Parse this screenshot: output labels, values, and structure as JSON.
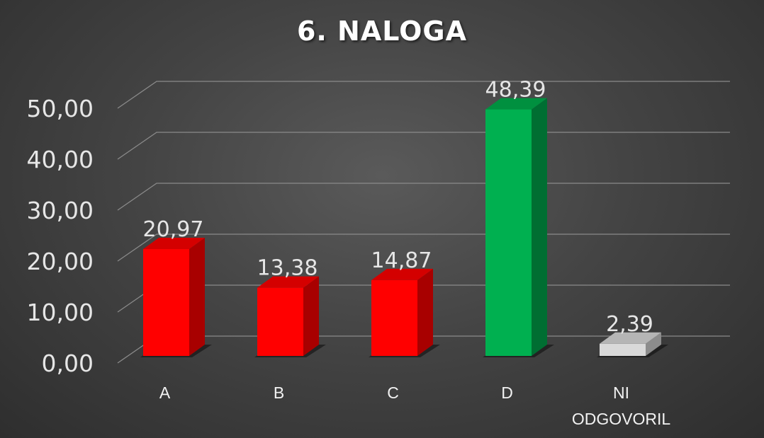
{
  "chart_data": {
    "type": "bar",
    "title": "6. NALOGA",
    "categories": [
      "A",
      "B",
      "C",
      "D",
      "NI ODGOVORIL"
    ],
    "category_lines": [
      [
        "A"
      ],
      [
        "B"
      ],
      [
        "C"
      ],
      [
        "D"
      ],
      [
        "NI",
        "ODGOVORIL"
      ]
    ],
    "values": [
      20.97,
      13.38,
      14.87,
      48.39,
      2.39
    ],
    "data_labels": [
      "20,97",
      "13,38",
      "14,87",
      "48,39",
      "2,39"
    ],
    "y_ticks": [
      0,
      10,
      20,
      30,
      40,
      50
    ],
    "y_tick_labels": [
      "0,00",
      "10,00",
      "20,00",
      "30,00",
      "40,00",
      "50,00"
    ],
    "ylim": [
      0,
      50
    ],
    "xlabel": "",
    "ylabel": "",
    "grid": true,
    "legend": "none",
    "style": "3d-column",
    "bar_colors": [
      "#ff0000",
      "#ff0000",
      "#ff0000",
      "#00b050",
      "#d9d9d9"
    ],
    "bar_side_colors": [
      "#a80000",
      "#a80000",
      "#a80000",
      "#006e32",
      "#8c8c8c"
    ],
    "bar_top_colors": [
      "#d40000",
      "#d40000",
      "#d40000",
      "#00903f",
      "#b5b5b5"
    ]
  }
}
